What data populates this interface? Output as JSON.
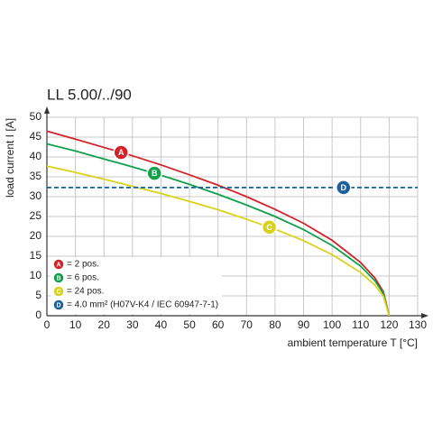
{
  "chart_data": {
    "type": "line",
    "title": "LL 5.00/../90",
    "x_label": "ambient temperature T [°C]",
    "y_label": "load current I [A]",
    "xlim": [
      0,
      130
    ],
    "xticks": [
      0,
      10,
      20,
      30,
      40,
      50,
      60,
      70,
      80,
      90,
      100,
      110,
      120,
      130
    ],
    "ylim": [
      0,
      50
    ],
    "yticks": [
      0,
      5,
      10,
      15,
      20,
      25,
      30,
      35,
      40,
      45,
      50
    ],
    "grid": true,
    "series": [
      {
        "name": "= 2 pos.",
        "marker": "A",
        "color": "#d2232a",
        "dashed": false,
        "x": [
          0,
          10,
          20,
          30,
          40,
          50,
          60,
          70,
          80,
          90,
          100,
          110,
          115,
          118,
          120
        ],
        "values": [
          46.5,
          44.5,
          42.4,
          40.3,
          38,
          35.5,
          32.9,
          30,
          26.8,
          23.3,
          19,
          13.4,
          9.5,
          6,
          0
        ]
      },
      {
        "name": "= 6 pos.",
        "marker": "B",
        "color": "#13a04b",
        "dashed": false,
        "x": [
          0,
          10,
          20,
          30,
          40,
          50,
          60,
          70,
          80,
          90,
          100,
          110,
          115,
          118,
          120
        ],
        "values": [
          43.3,
          41.5,
          39.5,
          37.5,
          35.4,
          33.1,
          30.6,
          27.9,
          25,
          21.7,
          17.7,
          12.5,
          8.8,
          5.6,
          0
        ]
      },
      {
        "name": "= 24 pos.",
        "marker": "C",
        "color": "#d9d21c",
        "dashed": false,
        "x": [
          0,
          10,
          20,
          30,
          40,
          50,
          60,
          70,
          80,
          90,
          100,
          110,
          115,
          118,
          120
        ],
        "values": [
          37.7,
          36.1,
          34.4,
          32.6,
          30.8,
          28.8,
          26.7,
          24.3,
          21.8,
          18.9,
          15.4,
          10.9,
          7.7,
          4.9,
          0
        ]
      },
      {
        "name": "= 4.0 mm² (H07V-K4 / IEC 60947-7-1)",
        "marker": "D",
        "color": "#1c5f9c",
        "dashed": true,
        "x": [
          0,
          130
        ],
        "values": [
          32.3,
          32.3
        ]
      }
    ]
  }
}
